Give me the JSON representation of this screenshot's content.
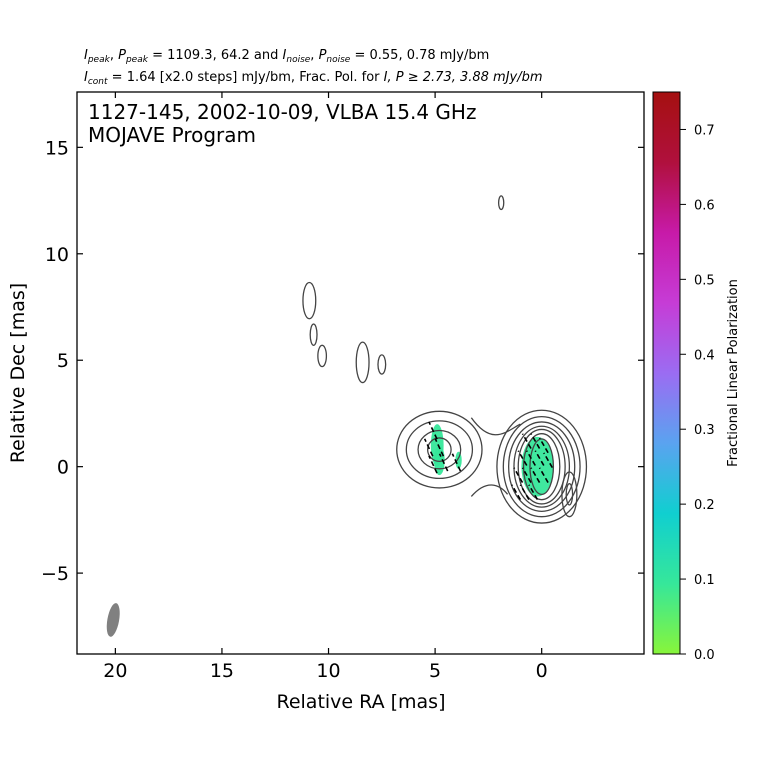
{
  "header": {
    "line1": {
      "i_peak": "I",
      "i_peak_sub": "peak",
      "p_peak": "P",
      "p_peak_sub": "peak",
      "peaks_values": "= 1109.3, 64.2 and",
      "i_noise": "I",
      "i_noise_sub": "noise",
      "p_noise": "P",
      "p_noise_sub": "noise",
      "noise_values": "= 0.55, 0.78 mJy/bm"
    },
    "line2": {
      "i_cont": "I",
      "i_cont_sub": "cont",
      "cont_text": "= 1.64 [x2.0 steps] mJy/bm, Frac. Pol. for",
      "threshold_text": "I, P ≥ 2.73, 3.88 mJy/bm"
    }
  },
  "chart_data": {
    "type": "contour",
    "title_line1": "1127-145, 2002-10-09, VLBA 15.4 GHz",
    "title_line2": "MOJAVE Program",
    "xlabel": "Relative RA [mas]",
    "ylabel": "Relative Dec [mas]",
    "xlim": [
      21.8,
      -4.8
    ],
    "ylim": [
      -8.8,
      17.6
    ],
    "x_ticks": [
      20,
      15,
      10,
      5,
      0
    ],
    "x_tick_labels": [
      "20",
      "15",
      "10",
      "5",
      "0"
    ],
    "y_ticks": [
      -5,
      0,
      5,
      10,
      15
    ],
    "y_tick_labels": [
      "−5",
      "0",
      "5",
      "10",
      "15"
    ],
    "contour_color": "#444444",
    "beam": {
      "x": 20.1,
      "y": -7.2,
      "major_mas": 1.6,
      "minor_mas": 0.55,
      "pa_deg": -10,
      "color": "#808080"
    },
    "colorbar": {
      "label": "Fractional Linear Polarization",
      "ticks": [
        0.0,
        0.1,
        0.2,
        0.3,
        0.4,
        0.5,
        0.6,
        0.7
      ],
      "tick_labels": [
        "0.0",
        "0.1",
        "0.2",
        "0.3",
        "0.4",
        "0.5",
        "0.6",
        "0.7"
      ],
      "range": [
        0.0,
        0.75
      ],
      "colors": [
        "#88f53a",
        "#36e79a",
        "#10cfd0",
        "#5aa3f0",
        "#9b6cf2",
        "#c63cd6",
        "#c71aa8",
        "#b0103d",
        "#a51010"
      ]
    },
    "components": [
      {
        "name": "core",
        "x": 0.0,
        "y": 0.0,
        "levels_mas": [
          [
            0.55,
            1.3
          ],
          [
            0.85,
            1.55
          ],
          [
            1.1,
            1.75
          ],
          [
            1.3,
            1.9
          ],
          [
            1.55,
            2.1
          ],
          [
            1.8,
            2.35
          ],
          [
            2.1,
            2.65
          ]
        ]
      },
      {
        "name": "jet-knot",
        "x": 4.8,
        "y": 0.8,
        "levels_mas": [
          [
            0.55,
            0.55
          ],
          [
            1.0,
            0.9
          ],
          [
            1.55,
            1.35
          ],
          [
            2.0,
            1.8
          ]
        ]
      },
      {
        "name": "east-clump",
        "x": 8.4,
        "y": 4.9,
        "rx": 0.3,
        "ry": 0.95
      },
      {
        "name": "east-spot",
        "x": 7.5,
        "y": 4.8,
        "rx": 0.18,
        "ry": 0.45
      },
      {
        "name": "north-blob-1",
        "x": 10.9,
        "y": 7.8,
        "rx": 0.3,
        "ry": 0.85
      },
      {
        "name": "north-blob-2",
        "x": 10.7,
        "y": 6.2,
        "rx": 0.16,
        "ry": 0.5
      },
      {
        "name": "north-blob-3",
        "x": 10.3,
        "y": 5.2,
        "rx": 0.2,
        "ry": 0.5
      },
      {
        "name": "top-spot",
        "x": 1.9,
        "y": 12.4,
        "rx": 0.12,
        "ry": 0.32
      },
      {
        "name": "west-spot",
        "x": -1.3,
        "y": -1.3,
        "rx": 0.35,
        "ry": 1.05
      },
      {
        "name": "west-spot-inner",
        "x": -1.3,
        "y": -1.3,
        "rx": 0.15,
        "ry": 0.5
      }
    ],
    "polarization_patches": [
      {
        "x": 0.2,
        "y": 0.0,
        "rx": 0.75,
        "ry": 1.4,
        "frac": 0.08
      },
      {
        "x": 4.9,
        "y": 1.0,
        "rx": 0.3,
        "ry": 1.0,
        "frac": 0.12
      },
      {
        "x": 4.8,
        "y": 0.3,
        "rx": 0.25,
        "ry": 0.7,
        "frac": 0.07
      },
      {
        "x": 3.9,
        "y": 0.3,
        "rx": 0.15,
        "ry": 0.4,
        "frac": 0.05
      }
    ],
    "evpa_ticks": [
      {
        "x": 0.7,
        "y": 1.2,
        "len": 0.8,
        "ang": 60
      },
      {
        "x": 0.3,
        "y": 1.2,
        "len": 0.8,
        "ang": 60
      },
      {
        "x": -0.1,
        "y": 1.0,
        "len": 0.8,
        "ang": 60
      },
      {
        "x": 0.9,
        "y": 0.4,
        "len": 0.8,
        "ang": 60
      },
      {
        "x": 0.5,
        "y": 0.4,
        "len": 0.8,
        "ang": 60
      },
      {
        "x": 0.1,
        "y": 0.4,
        "len": 0.8,
        "ang": 60
      },
      {
        "x": -0.3,
        "y": 0.3,
        "len": 0.8,
        "ang": 60
      },
      {
        "x": 1.1,
        "y": -0.4,
        "len": 0.8,
        "ang": 60
      },
      {
        "x": 0.7,
        "y": -0.4,
        "len": 0.8,
        "ang": 60
      },
      {
        "x": 0.3,
        "y": -0.4,
        "len": 0.8,
        "ang": 60
      },
      {
        "x": -0.1,
        "y": -0.4,
        "len": 0.8,
        "ang": 60
      },
      {
        "x": 1.2,
        "y": -1.2,
        "len": 0.8,
        "ang": 60
      },
      {
        "x": 0.8,
        "y": -1.2,
        "len": 0.8,
        "ang": 60
      },
      {
        "x": 0.4,
        "y": -1.2,
        "len": 0.8,
        "ang": 60
      },
      {
        "x": 5.1,
        "y": 1.7,
        "len": 0.9,
        "ang": 65
      },
      {
        "x": 5.3,
        "y": 0.9,
        "len": 0.9,
        "ang": 65
      },
      {
        "x": 4.8,
        "y": 0.9,
        "len": 0.9,
        "ang": 65
      },
      {
        "x": 5.1,
        "y": 0.1,
        "len": 0.9,
        "ang": 65
      },
      {
        "x": 4.6,
        "y": 0.2,
        "len": 0.9,
        "ang": 65
      },
      {
        "x": 4.0,
        "y": 0.2,
        "len": 0.9,
        "ang": 65
      }
    ]
  }
}
